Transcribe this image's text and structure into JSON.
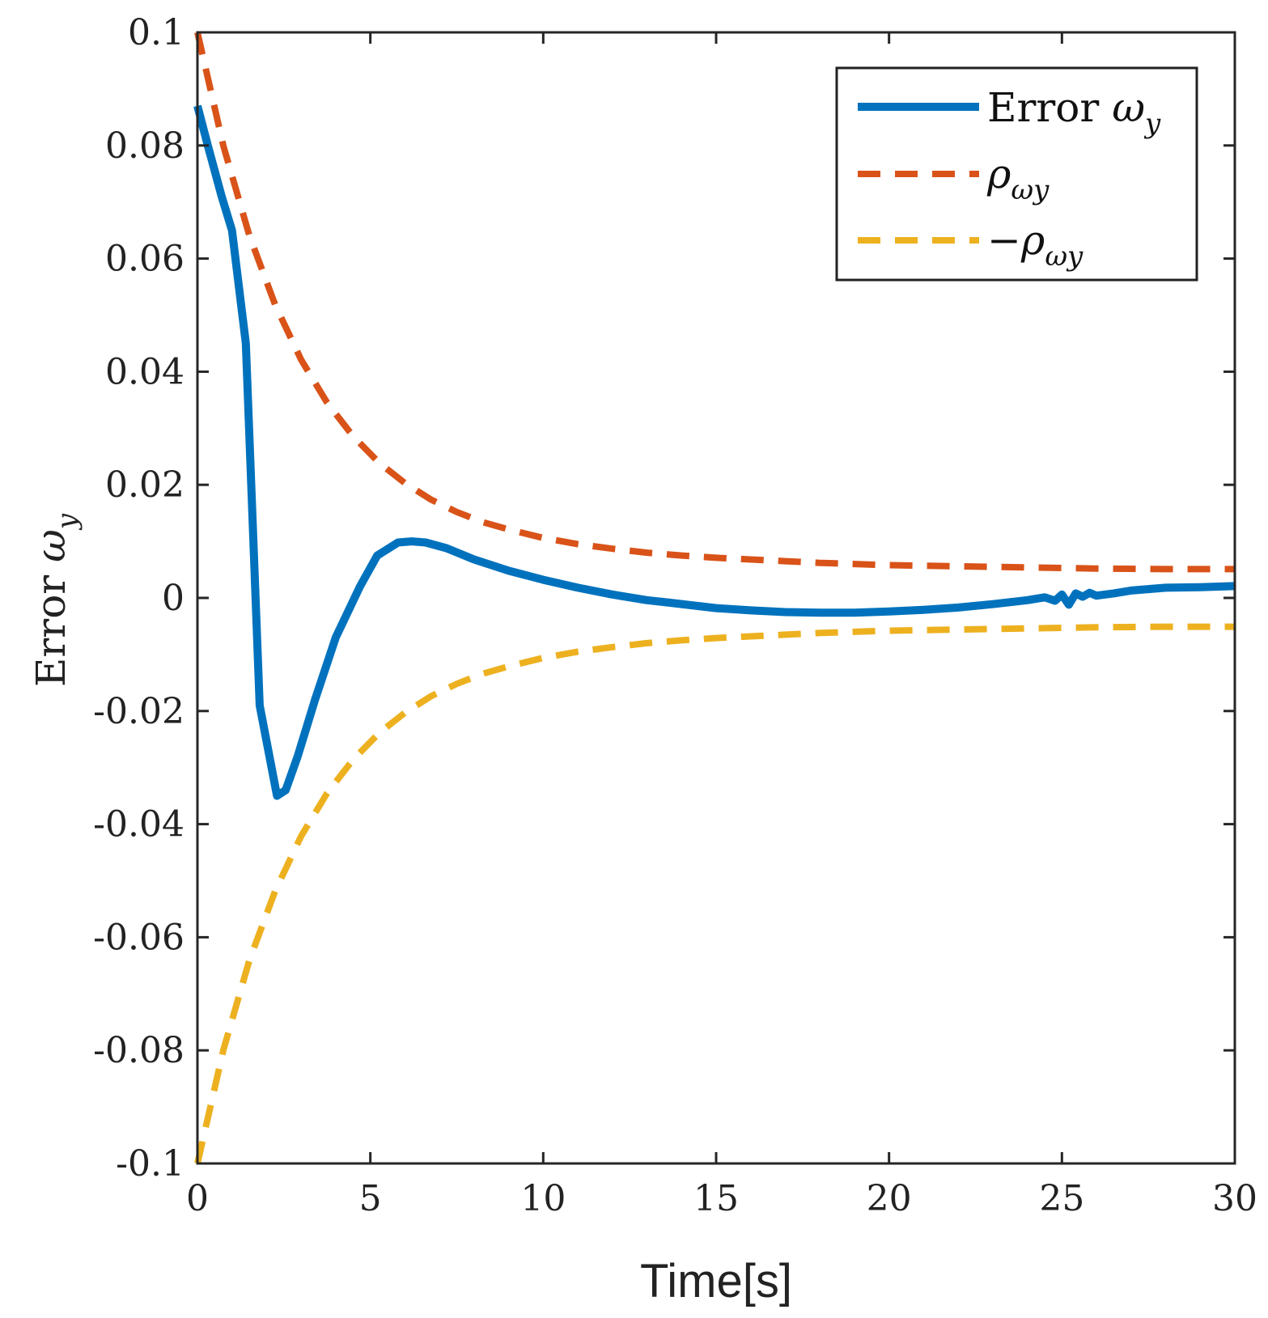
{
  "chart_data": {
    "type": "line",
    "title": "",
    "xlabel": "Time[s]",
    "ylabel": "Error ω_y",
    "ylabel_parts": {
      "main": "Error ",
      "symbol": "ω",
      "subscript": "y"
    },
    "xlim": [
      0,
      30
    ],
    "ylim": [
      -0.1,
      0.1
    ],
    "grid": false,
    "legend_position": "top-right",
    "xticks": [
      0,
      5,
      10,
      15,
      20,
      25,
      30
    ],
    "xtick_labels": [
      "0",
      "5",
      "10",
      "15",
      "20",
      "25",
      "30"
    ],
    "yticks": [
      0.1,
      0.08,
      0.06,
      0.04,
      0.02,
      0,
      -0.02,
      -0.04,
      -0.06,
      -0.08,
      -0.1
    ],
    "ytick_labels": [
      "0.1",
      "0.08",
      "0.06",
      "0.04",
      "0.02",
      "0",
      "-0.02",
      "-0.04",
      "-0.06",
      "-0.08",
      "-0.1"
    ],
    "series": [
      {
        "name": "Error ω_y",
        "legend": {
          "main": "Error ",
          "symbol": "ω",
          "subscript": "y"
        },
        "color": "#0072BD",
        "style": "solid",
        "x": [
          0,
          0.3,
          0.7,
          1.0,
          1.4,
          1.8,
          2.3,
          2.55,
          2.9,
          3.4,
          4.0,
          4.7,
          5.2,
          5.8,
          6.2,
          6.6,
          7.2,
          8.0,
          9.0,
          10.0,
          11.0,
          12.0,
          13.0,
          13.6,
          14.3,
          15.0,
          16.0,
          17.0,
          18.0,
          19.0,
          20.0,
          21.0,
          22.0,
          23.0,
          24.0,
          24.5,
          24.8,
          25.0,
          25.2,
          25.4,
          25.6,
          25.8,
          26.0,
          26.5,
          27.0,
          28.0,
          29.0,
          30.0
        ],
        "y": [
          0.087,
          0.08,
          0.071,
          0.065,
          0.045,
          -0.019,
          -0.035,
          -0.034,
          -0.028,
          -0.018,
          -0.007,
          0.002,
          0.0075,
          0.0098,
          0.01,
          0.0098,
          0.0088,
          0.0068,
          0.0048,
          0.0032,
          0.0018,
          0.0006,
          -0.0004,
          -0.0008,
          -0.0013,
          -0.0018,
          -0.0022,
          -0.0025,
          -0.0026,
          -0.0026,
          -0.0024,
          -0.0021,
          -0.0017,
          -0.0011,
          -0.0004,
          0.0001,
          -0.0005,
          0.0006,
          -0.0012,
          0.0008,
          0.0002,
          0.0009,
          0.0004,
          0.0008,
          0.0013,
          0.0018,
          0.0019,
          0.0021
        ]
      },
      {
        "name": "ρ_ωy",
        "legend": {
          "prefix": "",
          "symbol": "ρ",
          "subscript": "ωy"
        },
        "color": "#D95319",
        "style": "dashed",
        "x": [
          0,
          0.75,
          1.5,
          2.25,
          3.0,
          3.75,
          4.5,
          5.25,
          6.0,
          6.75,
          7.5,
          8.25,
          9.0,
          10.0,
          11.0,
          12.0,
          13.0,
          14.0,
          15.0,
          16.0,
          17.0,
          18.0,
          19.0,
          20.0,
          21.0,
          22.0,
          24.0,
          26.0,
          28.0,
          30.0
        ],
        "y": [
          0.1,
          0.0799,
          0.0641,
          0.0518,
          0.0421,
          0.0345,
          0.0286,
          0.0239,
          0.0203,
          0.0174,
          0.0152,
          0.0134,
          0.0121,
          0.0106,
          0.0095,
          0.0087,
          0.008,
          0.0075,
          0.0071,
          0.0068,
          0.0065,
          0.0062,
          0.006,
          0.0058,
          0.0057,
          0.0056,
          0.0054,
          0.0052,
          0.0051,
          0.0051
        ]
      },
      {
        "name": "-ρ_ωy",
        "legend": {
          "prefix": "−",
          "symbol": "ρ",
          "subscript": "ωy"
        },
        "color": "#EDB120",
        "style": "dashed",
        "x": [
          0,
          0.75,
          1.5,
          2.25,
          3.0,
          3.75,
          4.5,
          5.25,
          6.0,
          6.75,
          7.5,
          8.25,
          9.0,
          10.0,
          11.0,
          12.0,
          13.0,
          14.0,
          15.0,
          16.0,
          17.0,
          18.0,
          19.0,
          20.0,
          21.0,
          22.0,
          24.0,
          26.0,
          28.0,
          30.0
        ],
        "y": [
          -0.1,
          -0.0799,
          -0.0641,
          -0.0518,
          -0.0421,
          -0.0345,
          -0.0286,
          -0.0239,
          -0.0203,
          -0.0174,
          -0.0152,
          -0.0134,
          -0.0121,
          -0.0106,
          -0.0095,
          -0.0087,
          -0.008,
          -0.0075,
          -0.0071,
          -0.0068,
          -0.0065,
          -0.0062,
          -0.006,
          -0.0058,
          -0.0057,
          -0.0056,
          -0.0054,
          -0.0052,
          -0.0051,
          -0.0051
        ]
      }
    ]
  }
}
